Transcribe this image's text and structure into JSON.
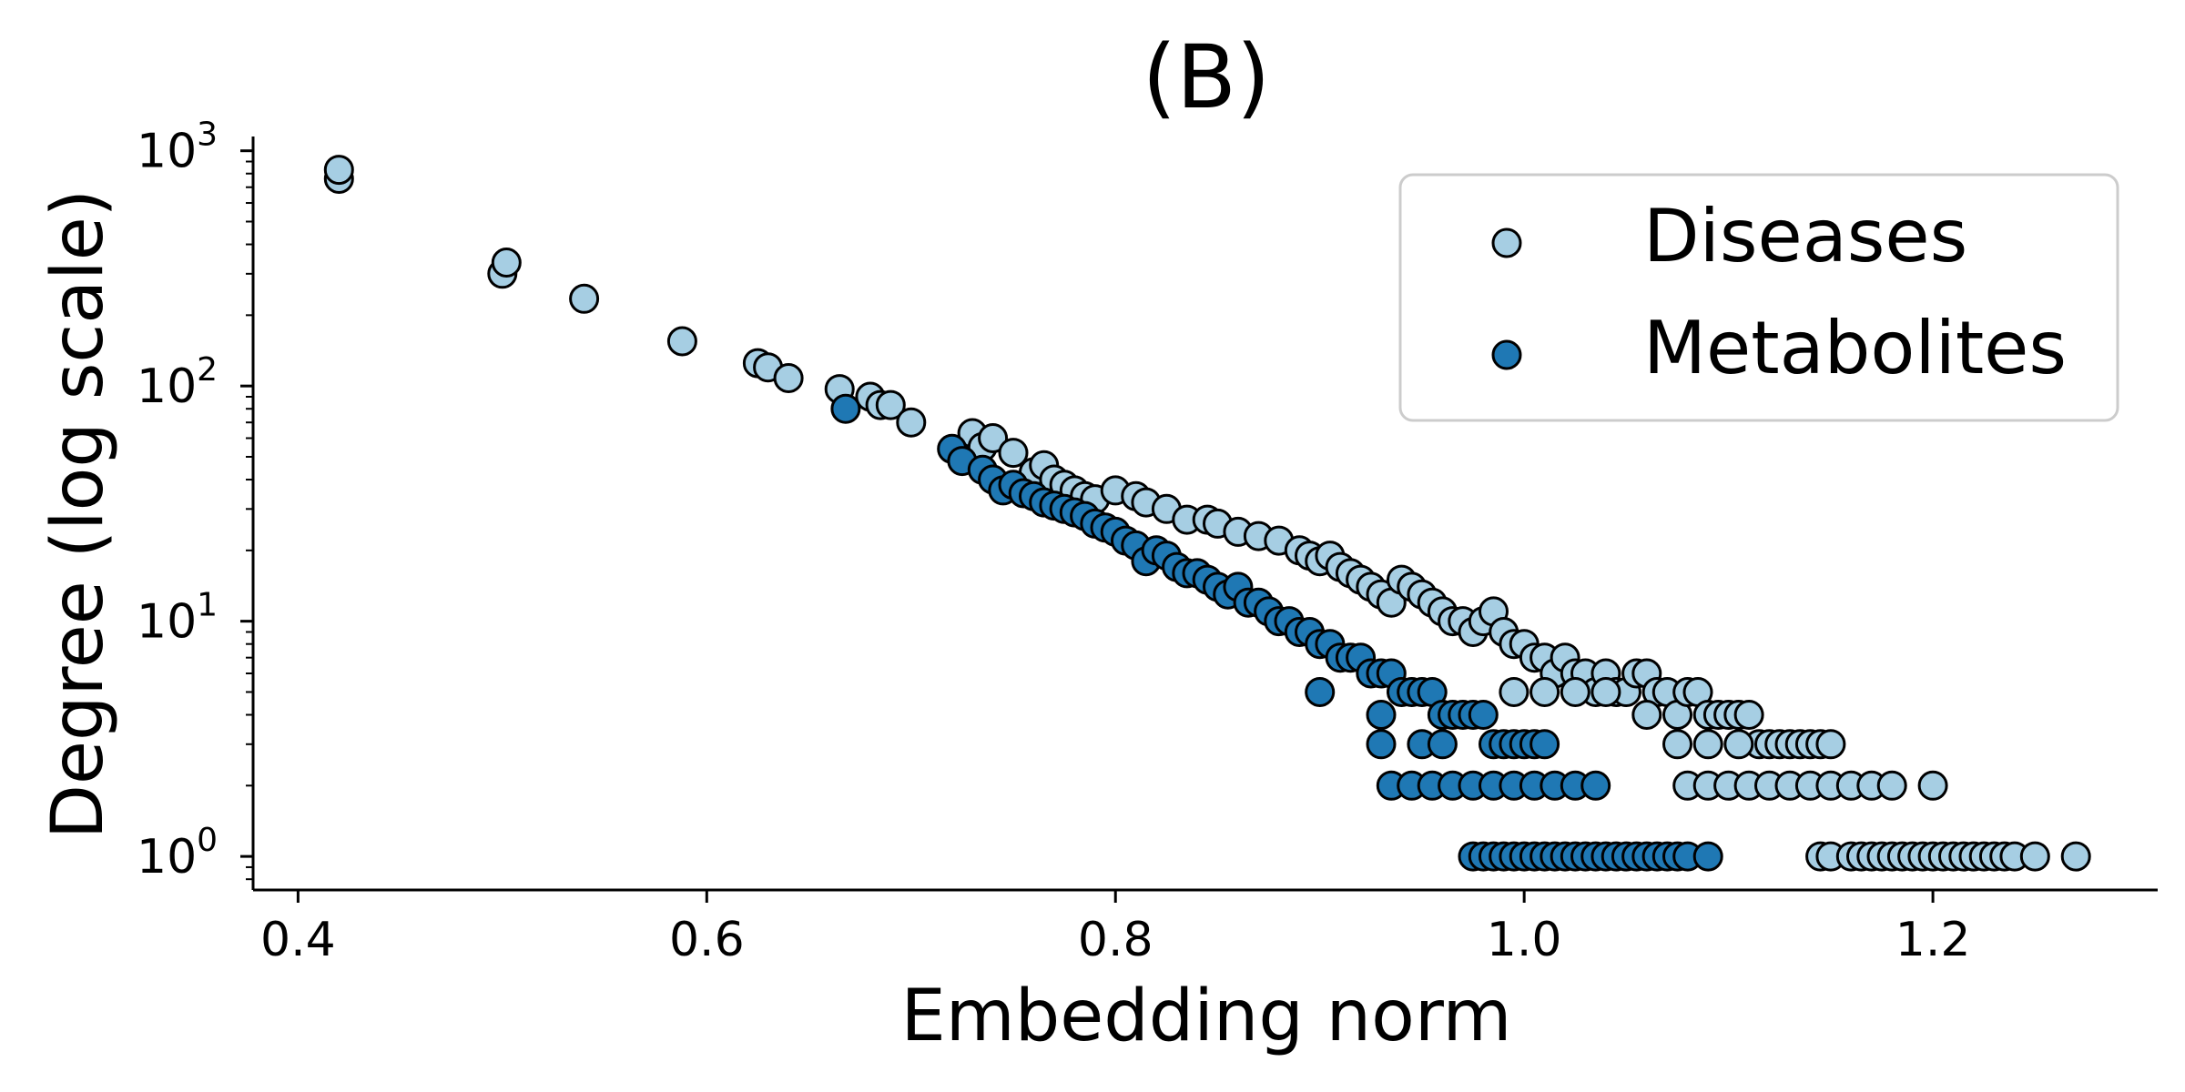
{
  "chart_data": {
    "type": "scatter",
    "title": "(B)",
    "xlabel": "Embedding norm",
    "ylabel": "Degree (log scale)",
    "xlim": [
      0.378,
      1.31
    ],
    "ylim": [
      0.72,
      1150
    ],
    "yscale": "log",
    "grid": false,
    "legend_position": "top-right",
    "x_ticks": [
      {
        "value": 0.4,
        "label": "0.4"
      },
      {
        "value": 0.6,
        "label": "0.6"
      },
      {
        "value": 0.8,
        "label": "0.8"
      },
      {
        "value": 1.0,
        "label": "1.0"
      },
      {
        "value": 1.2,
        "label": "1.2"
      }
    ],
    "y_ticks": [
      {
        "value": 1,
        "base": "10",
        "exp": "0"
      },
      {
        "value": 10,
        "base": "10",
        "exp": "1"
      },
      {
        "value": 100,
        "base": "10",
        "exp": "2"
      },
      {
        "value": 1000,
        "base": "10",
        "exp": "3"
      }
    ],
    "series": [
      {
        "name": "Diseases",
        "color": "#a6cee3",
        "points": [
          [
            0.42,
            760
          ],
          [
            0.42,
            830
          ],
          [
            0.5,
            300
          ],
          [
            0.502,
            335
          ],
          [
            0.54,
            235
          ],
          [
            0.588,
            155
          ],
          [
            0.625,
            125
          ],
          [
            0.63,
            120
          ],
          [
            0.64,
            108
          ],
          [
            0.665,
            97
          ],
          [
            0.68,
            90
          ],
          [
            0.685,
            83
          ],
          [
            0.69,
            83
          ],
          [
            0.7,
            70
          ],
          [
            0.73,
            63
          ],
          [
            0.735,
            55
          ],
          [
            0.74,
            60
          ],
          [
            0.75,
            52
          ],
          [
            0.76,
            43
          ],
          [
            0.765,
            46
          ],
          [
            0.77,
            40
          ],
          [
            0.775,
            38
          ],
          [
            0.78,
            36
          ],
          [
            0.785,
            34
          ],
          [
            0.79,
            33
          ],
          [
            0.8,
            36
          ],
          [
            0.81,
            34
          ],
          [
            0.815,
            32
          ],
          [
            0.825,
            30
          ],
          [
            0.835,
            27
          ],
          [
            0.845,
            27
          ],
          [
            0.85,
            26
          ],
          [
            0.86,
            24
          ],
          [
            0.87,
            23
          ],
          [
            0.88,
            22
          ],
          [
            0.89,
            20
          ],
          [
            0.895,
            19
          ],
          [
            0.9,
            18
          ],
          [
            0.905,
            19
          ],
          [
            0.91,
            17
          ],
          [
            0.915,
            16
          ],
          [
            0.92,
            15
          ],
          [
            0.925,
            14
          ],
          [
            0.93,
            13
          ],
          [
            0.935,
            12
          ],
          [
            0.94,
            15
          ],
          [
            0.945,
            14
          ],
          [
            0.95,
            13
          ],
          [
            0.955,
            12
          ],
          [
            0.96,
            11
          ],
          [
            0.965,
            10
          ],
          [
            0.97,
            10
          ],
          [
            0.975,
            9
          ],
          [
            0.98,
            10
          ],
          [
            0.985,
            11
          ],
          [
            0.99,
            9
          ],
          [
            0.995,
            8
          ],
          [
            1.0,
            8
          ],
          [
            1.005,
            7
          ],
          [
            1.01,
            7
          ],
          [
            1.015,
            6
          ],
          [
            1.02,
            7
          ],
          [
            1.025,
            6
          ],
          [
            1.03,
            6
          ],
          [
            1.035,
            5
          ],
          [
            1.04,
            6
          ],
          [
            1.045,
            5
          ],
          [
            1.05,
            5
          ],
          [
            1.055,
            6
          ],
          [
            1.06,
            6
          ],
          [
            1.065,
            5
          ],
          [
            1.07,
            5
          ],
          [
            1.075,
            4
          ],
          [
            1.08,
            5
          ],
          [
            1.085,
            5
          ],
          [
            1.09,
            4
          ],
          [
            1.095,
            4
          ],
          [
            1.1,
            4
          ],
          [
            1.105,
            4
          ],
          [
            1.11,
            4
          ],
          [
            1.115,
            3
          ],
          [
            1.12,
            3
          ],
          [
            1.125,
            3
          ],
          [
            1.13,
            3
          ],
          [
            1.135,
            3
          ],
          [
            1.14,
            3
          ],
          [
            1.145,
            3
          ],
          [
            1.15,
            3
          ],
          [
            0.995,
            5
          ],
          [
            1.01,
            5
          ],
          [
            1.025,
            5
          ],
          [
            1.04,
            5
          ],
          [
            1.06,
            4
          ],
          [
            1.075,
            3
          ],
          [
            1.09,
            3
          ],
          [
            1.105,
            3
          ],
          [
            1.08,
            2
          ],
          [
            1.09,
            2
          ],
          [
            1.1,
            2
          ],
          [
            1.11,
            2
          ],
          [
            1.12,
            2
          ],
          [
            1.13,
            2
          ],
          [
            1.14,
            2
          ],
          [
            1.15,
            2
          ],
          [
            1.16,
            2
          ],
          [
            1.17,
            2
          ],
          [
            1.18,
            2
          ],
          [
            1.2,
            2
          ],
          [
            1.145,
            1
          ],
          [
            1.15,
            1
          ],
          [
            1.16,
            1
          ],
          [
            1.165,
            1
          ],
          [
            1.17,
            1
          ],
          [
            1.175,
            1
          ],
          [
            1.18,
            1
          ],
          [
            1.185,
            1
          ],
          [
            1.19,
            1
          ],
          [
            1.195,
            1
          ],
          [
            1.2,
            1
          ],
          [
            1.205,
            1
          ],
          [
            1.21,
            1
          ],
          [
            1.215,
            1
          ],
          [
            1.22,
            1
          ],
          [
            1.225,
            1
          ],
          [
            1.23,
            1
          ],
          [
            1.235,
            1
          ],
          [
            1.24,
            1
          ],
          [
            1.25,
            1
          ],
          [
            1.27,
            1
          ]
        ]
      },
      {
        "name": "Metabolites",
        "color": "#1f78b4",
        "points": [
          [
            0.668,
            80
          ],
          [
            0.72,
            54
          ],
          [
            0.725,
            48
          ],
          [
            0.735,
            44
          ],
          [
            0.74,
            40
          ],
          [
            0.745,
            36
          ],
          [
            0.75,
            38
          ],
          [
            0.755,
            35
          ],
          [
            0.76,
            34
          ],
          [
            0.765,
            32
          ],
          [
            0.77,
            31
          ],
          [
            0.775,
            30
          ],
          [
            0.78,
            29
          ],
          [
            0.785,
            28
          ],
          [
            0.79,
            26
          ],
          [
            0.795,
            25
          ],
          [
            0.8,
            24
          ],
          [
            0.805,
            22
          ],
          [
            0.81,
            21
          ],
          [
            0.815,
            18
          ],
          [
            0.82,
            20
          ],
          [
            0.825,
            19
          ],
          [
            0.83,
            17
          ],
          [
            0.835,
            16
          ],
          [
            0.84,
            16
          ],
          [
            0.845,
            15
          ],
          [
            0.85,
            14
          ],
          [
            0.855,
            13
          ],
          [
            0.86,
            14
          ],
          [
            0.865,
            12
          ],
          [
            0.87,
            12
          ],
          [
            0.875,
            11
          ],
          [
            0.88,
            10
          ],
          [
            0.885,
            10
          ],
          [
            0.89,
            9
          ],
          [
            0.895,
            9
          ],
          [
            0.9,
            8
          ],
          [
            0.905,
            8
          ],
          [
            0.91,
            7
          ],
          [
            0.915,
            7
          ],
          [
            0.92,
            7
          ],
          [
            0.925,
            6
          ],
          [
            0.93,
            6
          ],
          [
            0.935,
            6
          ],
          [
            0.94,
            5
          ],
          [
            0.945,
            5
          ],
          [
            0.95,
            5
          ],
          [
            0.955,
            5
          ],
          [
            0.96,
            4
          ],
          [
            0.965,
            4
          ],
          [
            0.97,
            4
          ],
          [
            0.975,
            4
          ],
          [
            0.98,
            4
          ],
          [
            0.985,
            3
          ],
          [
            0.99,
            3
          ],
          [
            0.995,
            3
          ],
          [
            1.0,
            3
          ],
          [
            1.005,
            3
          ],
          [
            1.01,
            3
          ],
          [
            0.9,
            5
          ],
          [
            0.93,
            4
          ],
          [
            0.95,
            3
          ],
          [
            0.96,
            3
          ],
          [
            0.93,
            3
          ],
          [
            0.935,
            2
          ],
          [
            0.945,
            2
          ],
          [
            0.955,
            2
          ],
          [
            0.965,
            2
          ],
          [
            0.975,
            2
          ],
          [
            0.985,
            2
          ],
          [
            0.995,
            2
          ],
          [
            1.005,
            2
          ],
          [
            1.015,
            2
          ],
          [
            1.025,
            2
          ],
          [
            1.035,
            2
          ],
          [
            0.975,
            1
          ],
          [
            0.98,
            1
          ],
          [
            0.985,
            1
          ],
          [
            0.99,
            1
          ],
          [
            0.995,
            1
          ],
          [
            1.0,
            1
          ],
          [
            1.005,
            1
          ],
          [
            1.01,
            1
          ],
          [
            1.015,
            1
          ],
          [
            1.02,
            1
          ],
          [
            1.025,
            1
          ],
          [
            1.03,
            1
          ],
          [
            1.035,
            1
          ],
          [
            1.04,
            1
          ],
          [
            1.045,
            1
          ],
          [
            1.05,
            1
          ],
          [
            1.055,
            1
          ],
          [
            1.06,
            1
          ],
          [
            1.065,
            1
          ],
          [
            1.07,
            1
          ],
          [
            1.075,
            1
          ],
          [
            1.08,
            1
          ],
          [
            1.09,
            1
          ]
        ]
      }
    ]
  }
}
